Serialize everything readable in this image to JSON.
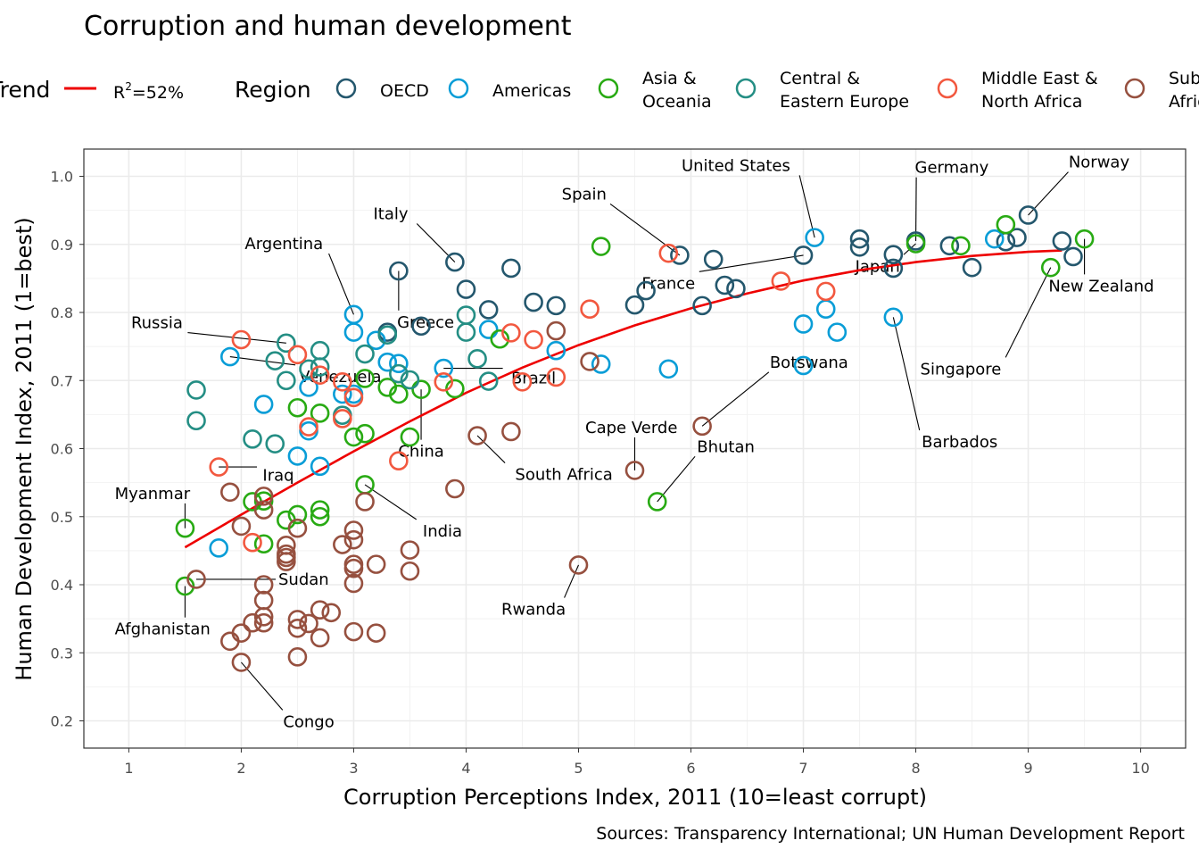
{
  "chart_data": {
    "type": "scatter",
    "title": "Corruption and human development",
    "xlabel": "Corruption Perceptions Index, 2011 (10=least corrupt)",
    "ylabel": "Human Development Index, 2011 (1=best)",
    "caption": "Sources: Transparency International; UN Human Development Report",
    "xlim": [
      0.6,
      10.4
    ],
    "ylim": [
      0.16,
      1.04
    ],
    "x_ticks": [
      "1",
      "2",
      "3",
      "4",
      "5",
      "6",
      "7",
      "8",
      "9",
      "10"
    ],
    "y_ticks": [
      "0.2",
      "0.3",
      "0.4",
      "0.5",
      "0.6",
      "0.7",
      "0.8",
      "0.9",
      "1.0"
    ],
    "grid": true,
    "legend_placement": "top",
    "trend": {
      "legend_title": "Trend",
      "label": "R²=52%",
      "label_base": "R",
      "label_sup": "2",
      "label_rest": "=52%",
      "color": "#ee0000",
      "points": [
        [
          1.5,
          0.455
        ],
        [
          2,
          0.503
        ],
        [
          2.5,
          0.55
        ],
        [
          3,
          0.596
        ],
        [
          3.5,
          0.64
        ],
        [
          4,
          0.682
        ],
        [
          4.5,
          0.719
        ],
        [
          5,
          0.752
        ],
        [
          5.5,
          0.781
        ],
        [
          6,
          0.806
        ],
        [
          6.5,
          0.828
        ],
        [
          7,
          0.847
        ],
        [
          7.5,
          0.862
        ],
        [
          8,
          0.874
        ],
        [
          8.5,
          0.883
        ],
        [
          9,
          0.889
        ],
        [
          9.3,
          0.891
        ]
      ]
    },
    "region_legend_title": "Region",
    "regions": [
      {
        "key": "oecd",
        "name": "OECD",
        "color": "#24576d"
      },
      {
        "key": "americas",
        "name": "Americas",
        "color": "#099dd7"
      },
      {
        "key": "asia",
        "name": "Asia & Oceania",
        "name_lines": [
          "Asia &",
          "Oceania"
        ],
        "color": "#28aa13"
      },
      {
        "key": "cee",
        "name": "Central & Eastern Europe",
        "name_lines": [
          "Central &",
          "Eastern Europe"
        ],
        "color": "#248e84"
      },
      {
        "key": "mena",
        "name": "Middle East & North Africa",
        "name_lines": [
          "Middle East &",
          "North Africa"
        ],
        "color": "#f2583f"
      },
      {
        "key": "ssa",
        "name": "Sub-Saharan Africa",
        "name_lines": [
          "Sub-",
          "Africa"
        ],
        "color": "#96503f"
      }
    ],
    "series": [
      {
        "region": "oecd",
        "points": [
          [
            3.4,
            0.861
          ],
          [
            3.6,
            0.78
          ],
          [
            3.3,
            0.771
          ],
          [
            3.9,
            0.874
          ],
          [
            4.0,
            0.834
          ],
          [
            4.2,
            0.804
          ],
          [
            4.4,
            0.865
          ],
          [
            4.6,
            0.815
          ],
          [
            4.8,
            0.81
          ],
          [
            5.5,
            0.811
          ],
          [
            5.6,
            0.832
          ],
          [
            5.9,
            0.884
          ],
          [
            6.1,
            0.81
          ],
          [
            6.2,
            0.878
          ],
          [
            6.3,
            0.84
          ],
          [
            6.4,
            0.835
          ],
          [
            7.0,
            0.884
          ],
          [
            7.5,
            0.896
          ],
          [
            7.5,
            0.908
          ],
          [
            7.8,
            0.885
          ],
          [
            7.8,
            0.865
          ],
          [
            8.0,
            0.905
          ],
          [
            8.3,
            0.898
          ],
          [
            8.5,
            0.866
          ],
          [
            8.8,
            0.904
          ],
          [
            8.9,
            0.91
          ],
          [
            9.0,
            0.943
          ],
          [
            9.3,
            0.905
          ],
          [
            9.4,
            0.882
          ]
        ]
      },
      {
        "region": "americas",
        "points": [
          [
            1.8,
            0.454
          ],
          [
            1.9,
            0.735
          ],
          [
            2.2,
            0.665
          ],
          [
            2.5,
            0.589
          ],
          [
            2.6,
            0.626
          ],
          [
            2.7,
            0.574
          ],
          [
            2.6,
            0.69
          ],
          [
            2.9,
            0.68
          ],
          [
            3.0,
            0.797
          ],
          [
            3.0,
            0.771
          ],
          [
            3.0,
            0.68
          ],
          [
            3.2,
            0.759
          ],
          [
            3.3,
            0.727
          ],
          [
            3.4,
            0.725
          ],
          [
            3.8,
            0.718
          ],
          [
            4.2,
            0.775
          ],
          [
            4.8,
            0.744
          ],
          [
            5.2,
            0.724
          ],
          [
            5.8,
            0.717
          ],
          [
            7.0,
            0.783
          ],
          [
            7.0,
            0.722
          ],
          [
            7.1,
            0.91
          ],
          [
            7.2,
            0.805
          ],
          [
            7.3,
            0.771
          ],
          [
            7.8,
            0.793
          ],
          [
            8.7,
            0.908
          ]
        ]
      },
      {
        "region": "asia",
        "points": [
          [
            1.5,
            0.483
          ],
          [
            1.5,
            0.398
          ],
          [
            2.1,
            0.522
          ],
          [
            2.2,
            0.523
          ],
          [
            2.2,
            0.46
          ],
          [
            2.4,
            0.495
          ],
          [
            2.5,
            0.503
          ],
          [
            2.5,
            0.66
          ],
          [
            2.7,
            0.652
          ],
          [
            2.7,
            0.51
          ],
          [
            2.7,
            0.5
          ],
          [
            3.0,
            0.617
          ],
          [
            3.1,
            0.547
          ],
          [
            3.1,
            0.622
          ],
          [
            3.1,
            0.703
          ],
          [
            3.3,
            0.69
          ],
          [
            3.4,
            0.68
          ],
          [
            3.5,
            0.617
          ],
          [
            3.6,
            0.687
          ],
          [
            3.9,
            0.688
          ],
          [
            4.3,
            0.761
          ],
          [
            5.2,
            0.897
          ],
          [
            5.7,
            0.522
          ],
          [
            8.0,
            0.901
          ],
          [
            8.4,
            0.898
          ],
          [
            8.8,
            0.929
          ],
          [
            9.2,
            0.866
          ],
          [
            9.5,
            0.908
          ]
        ]
      },
      {
        "region": "cee",
        "points": [
          [
            1.6,
            0.686
          ],
          [
            1.6,
            0.641
          ],
          [
            2.1,
            0.614
          ],
          [
            2.3,
            0.607
          ],
          [
            2.3,
            0.729
          ],
          [
            2.4,
            0.755
          ],
          [
            2.4,
            0.7
          ],
          [
            2.6,
            0.717
          ],
          [
            2.7,
            0.744
          ],
          [
            2.7,
            0.72
          ],
          [
            2.9,
            0.649
          ],
          [
            3.1,
            0.739
          ],
          [
            3.3,
            0.767
          ],
          [
            3.4,
            0.71
          ],
          [
            3.5,
            0.701
          ],
          [
            4.0,
            0.796
          ],
          [
            4.0,
            0.771
          ],
          [
            4.1,
            0.732
          ],
          [
            4.2,
            0.699
          ]
        ]
      },
      {
        "region": "mena",
        "points": [
          [
            1.8,
            0.573
          ],
          [
            2.0,
            0.76
          ],
          [
            2.1,
            0.462
          ],
          [
            2.5,
            0.738
          ],
          [
            2.6,
            0.632
          ],
          [
            2.7,
            0.708
          ],
          [
            2.9,
            0.698
          ],
          [
            2.9,
            0.644
          ],
          [
            3.0,
            0.675
          ],
          [
            3.4,
            0.582
          ],
          [
            3.8,
            0.698
          ],
          [
            4.4,
            0.77
          ],
          [
            4.5,
            0.698
          ],
          [
            4.6,
            0.76
          ],
          [
            4.8,
            0.705
          ],
          [
            5.1,
            0.805
          ],
          [
            5.8,
            0.887
          ],
          [
            6.8,
            0.846
          ],
          [
            7.2,
            0.831
          ]
        ]
      },
      {
        "region": "ssa",
        "points": [
          [
            1.6,
            0.408
          ],
          [
            1.9,
            0.317
          ],
          [
            1.9,
            0.536
          ],
          [
            2.0,
            0.286
          ],
          [
            2.0,
            0.486
          ],
          [
            2.0,
            0.329
          ],
          [
            2.1,
            0.344
          ],
          [
            2.2,
            0.4
          ],
          [
            2.2,
            0.377
          ],
          [
            2.2,
            0.344
          ],
          [
            2.2,
            0.353
          ],
          [
            2.2,
            0.51
          ],
          [
            2.2,
            0.53
          ],
          [
            2.4,
            0.458
          ],
          [
            2.4,
            0.445
          ],
          [
            2.4,
            0.434
          ],
          [
            2.4,
            0.44
          ],
          [
            2.5,
            0.483
          ],
          [
            2.5,
            0.349
          ],
          [
            2.5,
            0.294
          ],
          [
            2.5,
            0.336
          ],
          [
            2.6,
            0.343
          ],
          [
            2.7,
            0.363
          ],
          [
            2.7,
            0.322
          ],
          [
            2.8,
            0.359
          ],
          [
            2.9,
            0.459
          ],
          [
            3.0,
            0.466
          ],
          [
            3.0,
            0.48
          ],
          [
            3.0,
            0.43
          ],
          [
            3.0,
            0.402
          ],
          [
            3.0,
            0.331
          ],
          [
            3.0,
            0.424
          ],
          [
            3.1,
            0.522
          ],
          [
            3.2,
            0.43
          ],
          [
            3.2,
            0.329
          ],
          [
            3.5,
            0.451
          ],
          [
            3.5,
            0.42
          ],
          [
            3.9,
            0.541
          ],
          [
            4.1,
            0.619
          ],
          [
            4.4,
            0.625
          ],
          [
            4.8,
            0.773
          ],
          [
            5.0,
            0.429
          ],
          [
            5.1,
            0.728
          ],
          [
            5.5,
            0.568
          ],
          [
            6.1,
            0.633
          ]
        ]
      }
    ],
    "annotations": [
      {
        "label": "Russia",
        "point": [
          2.4,
          0.755
        ],
        "text_pos": [
          1.25,
          0.777
        ],
        "anchor": "middle"
      },
      {
        "label": "Venezuela",
        "point": [
          1.9,
          0.735
        ],
        "text_pos": [
          2.88,
          0.698
        ],
        "anchor": "middle"
      },
      {
        "label": "Iraq",
        "point": [
          1.8,
          0.573
        ],
        "text_pos": [
          2.33,
          0.553
        ],
        "anchor": "middle"
      },
      {
        "label": "Myanmar",
        "point": [
          1.5,
          0.483
        ],
        "text_pos": [
          1.21,
          0.526
        ],
        "anchor": "middle"
      },
      {
        "label": "Sudan",
        "point": [
          1.6,
          0.408
        ],
        "text_pos": [
          2.33,
          0.4
        ],
        "anchor": "start"
      },
      {
        "label": "Afghanistan",
        "point": [
          1.5,
          0.398
        ],
        "text_pos": [
          1.3,
          0.327
        ],
        "anchor": "middle"
      },
      {
        "label": "Congo",
        "point": [
          2.0,
          0.286
        ],
        "text_pos": [
          2.6,
          0.191
        ],
        "anchor": "middle"
      },
      {
        "label": "Argentina",
        "point": [
          3.0,
          0.797
        ],
        "text_pos": [
          2.38,
          0.893
        ],
        "anchor": "middle"
      },
      {
        "label": "Italy",
        "point": [
          3.9,
          0.874
        ],
        "text_pos": [
          3.33,
          0.937
        ],
        "anchor": "middle"
      },
      {
        "label": "Greece",
        "point": [
          3.4,
          0.861
        ],
        "text_pos": [
          3.64,
          0.778
        ],
        "anchor": "middle"
      },
      {
        "label": "Brazil",
        "point": [
          3.8,
          0.718
        ],
        "text_pos": [
          4.6,
          0.696
        ],
        "anchor": "middle"
      },
      {
        "label": "China",
        "point": [
          3.6,
          0.687
        ],
        "text_pos": [
          3.6,
          0.588
        ],
        "anchor": "middle"
      },
      {
        "label": "India",
        "point": [
          3.1,
          0.547
        ],
        "text_pos": [
          3.79,
          0.471
        ],
        "anchor": "middle"
      },
      {
        "label": "South Africa",
        "point": [
          4.1,
          0.619
        ],
        "text_pos": [
          4.87,
          0.554
        ],
        "anchor": "middle"
      },
      {
        "label": "Rwanda",
        "point": [
          5.0,
          0.429
        ],
        "text_pos": [
          4.6,
          0.356
        ],
        "anchor": "middle"
      },
      {
        "label": "Cape Verde",
        "point": [
          5.5,
          0.568
        ],
        "text_pos": [
          5.47,
          0.623
        ],
        "anchor": "middle"
      },
      {
        "label": "Bhutan",
        "point": [
          5.7,
          0.522
        ],
        "text_pos": [
          6.31,
          0.595
        ],
        "anchor": "middle"
      },
      {
        "label": "Botswana",
        "point": [
          6.1,
          0.633
        ],
        "text_pos": [
          7.05,
          0.719
        ],
        "anchor": "middle"
      },
      {
        "label": "Spain",
        "point": [
          5.9,
          0.884
        ],
        "text_pos": [
          5.05,
          0.966
        ],
        "anchor": "middle"
      },
      {
        "label": "United States",
        "point": [
          7.1,
          0.91
        ],
        "text_pos": [
          6.4,
          1.008
        ],
        "anchor": "middle"
      },
      {
        "label": "France",
        "point": [
          7.0,
          0.884
        ],
        "text_pos": [
          5.8,
          0.835
        ],
        "anchor": "middle"
      },
      {
        "label": "Japan",
        "point": [
          8.0,
          0.901
        ],
        "text_pos": [
          7.66,
          0.86
        ],
        "anchor": "middle"
      },
      {
        "label": "Germany",
        "point": [
          8.0,
          0.905
        ],
        "text_pos": [
          8.32,
          1.005
        ],
        "anchor": "middle"
      },
      {
        "label": "Norway",
        "point": [
          9.0,
          0.943
        ],
        "text_pos": [
          9.63,
          1.013
        ],
        "anchor": "middle"
      },
      {
        "label": "New Zealand",
        "point": [
          9.5,
          0.908
        ],
        "text_pos": [
          9.65,
          0.831
        ],
        "anchor": "middle"
      },
      {
        "label": "Singapore",
        "point": [
          9.2,
          0.866
        ],
        "text_pos": [
          8.4,
          0.709
        ],
        "anchor": "middle"
      },
      {
        "label": "Barbados",
        "point": [
          7.8,
          0.793
        ],
        "text_pos": [
          8.39,
          0.602
        ],
        "anchor": "middle"
      }
    ]
  }
}
